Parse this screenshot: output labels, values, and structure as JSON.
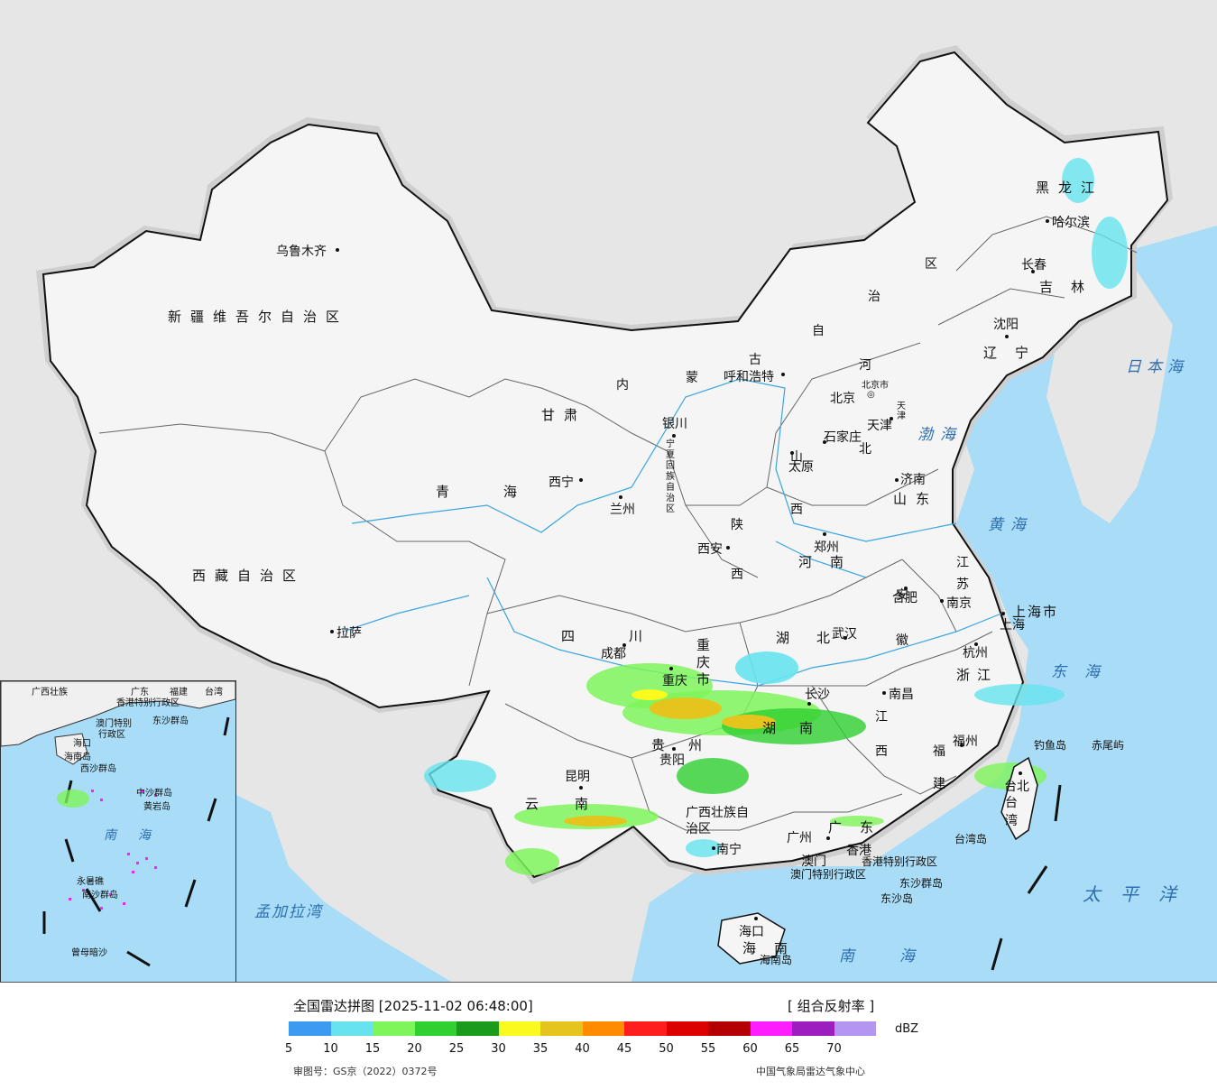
{
  "legend": {
    "title": "全国雷达拼图 [2025-11-02 06:48:00]",
    "product": "[ 组合反射率 ]",
    "unit": "dBZ",
    "colors": [
      "#3c9af0",
      "#67e3ef",
      "#7ef55a",
      "#2fd02f",
      "#1b9b1b",
      "#fafa1e",
      "#e6c41e",
      "#ff8c00",
      "#ff1e1e",
      "#dc0000",
      "#b40000",
      "#ff1eff",
      "#9b1ebe",
      "#b496f0"
    ],
    "ticks": [
      "5",
      "10",
      "15",
      "20",
      "25",
      "30",
      "35",
      "40",
      "45",
      "50",
      "55",
      "60",
      "65",
      "70"
    ],
    "approval": "审图号：GS京（2022）0372号",
    "agency": "中国气象局雷达气象中心"
  },
  "regions": {
    "xinjiang": "新疆维吾尔自治区",
    "xizang": "西藏自治区",
    "qinghai": "青海",
    "gansu": "甘肃",
    "neimenggu_1": "内",
    "neimenggu_2": "蒙",
    "neimenggu_3": "古",
    "neimenggu_4": "自",
    "neimenggu_5": "治",
    "neimenggu_6": "区",
    "heilongjiang": "黑龙江",
    "jilin": "吉林",
    "liaoning": "辽宁",
    "hebei_1": "河",
    "hebei_2": "北",
    "shanxi": "山西",
    "shandong": "山东",
    "henan": "河南",
    "shaanxi": "陕西",
    "ningxia": "宁夏回族自治区",
    "sichuan": "四川",
    "chongqing": "重庆市",
    "hubei": "湖北",
    "anhui": "安徽",
    "jiangsu": "江苏",
    "shanghai": "上海市",
    "zhejiang": "浙江",
    "jiangxi": "江西",
    "hunan": "湖南",
    "guizhou": "贵州",
    "yunnan": "云南",
    "guangxi": "广西壮族自治区",
    "guangdong": "广东",
    "fujian": "福建",
    "taiwan": "台湾",
    "hainan": "海南",
    "hk": "香港特别行政区",
    "macau": "澳门特别行政区",
    "beijing_city": "北京市",
    "tianjin_city": "天津"
  },
  "cities": {
    "urumqi": "乌鲁木齐",
    "lhasa": "拉萨",
    "xining": "西宁",
    "lanzhou": "兰州",
    "yinchuan": "银川",
    "hohhot": "呼和浩特",
    "beijing": "北京",
    "tianjin": "天津",
    "shijiazhuang": "石家庄",
    "taiyuan": "太原",
    "jinan": "济南",
    "zhengzhou": "郑州",
    "xian": "西安",
    "chengdu": "成都",
    "chongqing": "重庆",
    "wuhan": "武汉",
    "hefei": "合肥",
    "nanjing": "南京",
    "shanghai": "上海",
    "hangzhou": "杭州",
    "nanchang": "南昌",
    "changsha": "长沙",
    "guiyang": "贵阳",
    "kunming": "昆明",
    "nanning": "南宁",
    "guangzhou": "广州",
    "fuzhou": "福州",
    "taipei": "台北",
    "haikou": "海口",
    "harbin": "哈尔滨",
    "changchun": "长春",
    "shenyang": "沈阳",
    "hongkong": "香港",
    "macau": "澳门"
  },
  "islands": {
    "diaoyu": "钓鱼岛",
    "chiwei": "赤尾屿",
    "taiwan_island": "台湾岛",
    "hainan_island": "海南岛",
    "dongsha": "东沙群岛",
    "dongsha_dao": "东沙岛"
  },
  "seas": {
    "bohai": "渤海",
    "huanghai": "黄海",
    "donghai": "东海",
    "nanhai": "南海",
    "riben": "日本海",
    "taiping": "太平洋",
    "mengjiala": "孟加拉湾"
  },
  "inset": {
    "nanhai": "南海",
    "labels": [
      "广西壮族",
      "广东",
      "福建",
      "台湾",
      "香港特别行政区",
      "澳门特别",
      "行政区",
      "东沙群岛",
      "海口",
      "海南岛",
      "西沙群岛",
      "中沙群岛",
      "黄岩岛",
      "永暑礁",
      "南沙群岛",
      "曾母暗沙"
    ]
  }
}
